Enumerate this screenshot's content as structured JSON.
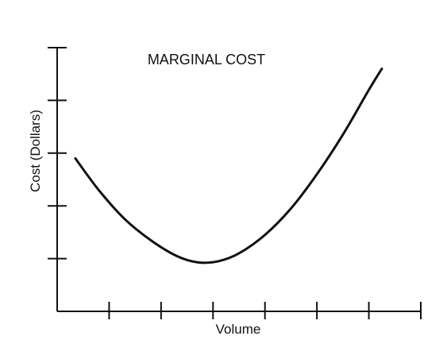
{
  "chart_data": {
    "type": "line",
    "title": "MARGINAL COST",
    "xlabel": "Volume",
    "ylabel": "Cost (Dollars)",
    "xlim": [
      0,
      7
    ],
    "ylim": [
      0,
      5
    ],
    "grid": false,
    "x_ticks": [
      1,
      2,
      3,
      4,
      5,
      6,
      7
    ],
    "y_ticks": [
      1,
      2,
      3,
      4,
      5
    ],
    "tick_labels_shown": false,
    "series": [
      {
        "values": [
          {
            "x": 0.35,
            "y": 2.9
          },
          {
            "x": 0.8,
            "y": 2.3
          },
          {
            "x": 1.3,
            "y": 1.75
          },
          {
            "x": 1.8,
            "y": 1.35
          },
          {
            "x": 2.3,
            "y": 1.05
          },
          {
            "x": 2.7,
            "y": 0.93
          },
          {
            "x": 3.1,
            "y": 0.95
          },
          {
            "x": 3.5,
            "y": 1.1
          },
          {
            "x": 4.0,
            "y": 1.45
          },
          {
            "x": 4.5,
            "y": 1.95
          },
          {
            "x": 5.0,
            "y": 2.6
          },
          {
            "x": 5.5,
            "y": 3.35
          },
          {
            "x": 6.0,
            "y": 4.2
          },
          {
            "x": 6.25,
            "y": 4.6
          }
        ]
      }
    ],
    "style": {
      "line_color": "#111111",
      "axis_color": "#111111",
      "background": "#ffffff"
    }
  }
}
